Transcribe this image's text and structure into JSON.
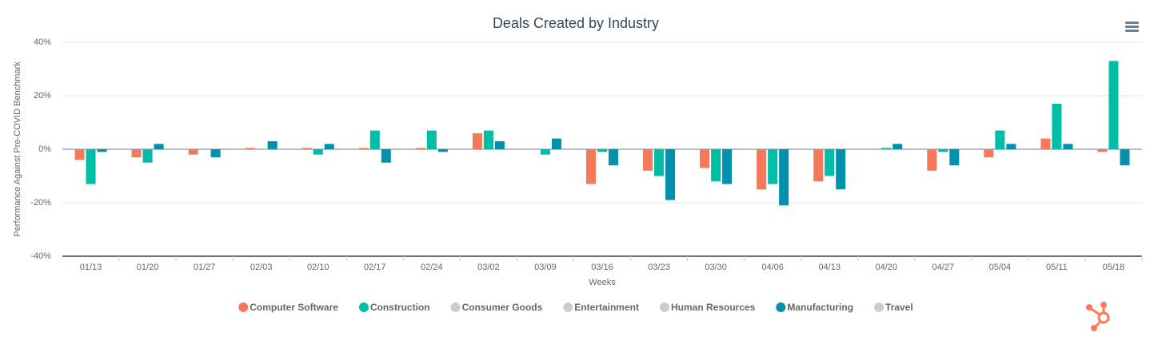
{
  "chart_data": {
    "type": "bar",
    "title": "Deals Created by Industry",
    "x_label": "Weeks",
    "y_label": "Performance Against Pre-COVID Benchmark",
    "categories": [
      "01/13",
      "01/20",
      "01/27",
      "02/03",
      "02/10",
      "02/17",
      "02/24",
      "03/02",
      "03/09",
      "03/16",
      "03/23",
      "03/30",
      "04/06",
      "04/13",
      "04/20",
      "04/27",
      "05/04",
      "05/11",
      "05/18"
    ],
    "series": [
      {
        "name": "Computer Software",
        "color": "#f5785a",
        "values": [
          -4,
          -3,
          -2,
          0.5,
          0.5,
          0.5,
          0.5,
          6,
          0,
          -13,
          -8,
          -7,
          -15,
          -12,
          0,
          -8,
          -3,
          4,
          -1
        ]
      },
      {
        "name": "Construction",
        "color": "#00bda5",
        "values": [
          -13,
          -5,
          0,
          0,
          -2,
          7,
          7,
          7,
          -2,
          -1,
          -10,
          -12,
          -13,
          -10,
          0.5,
          -1,
          7,
          17,
          33
        ]
      },
      {
        "name": "Consumer Goods",
        "color": "#cccccc",
        "visible": false
      },
      {
        "name": "Entertainment",
        "color": "#cccccc",
        "visible": false
      },
      {
        "name": "Human Resources",
        "color": "#cccccc",
        "visible": false
      },
      {
        "name": "Manufacturing",
        "color": "#0091ae",
        "values": [
          -1,
          2,
          -3,
          3,
          2,
          -5,
          -1,
          3,
          4,
          -6,
          -19,
          -13,
          -21,
          -15,
          2,
          -6,
          2,
          2,
          -6
        ]
      },
      {
        "name": "Travel",
        "color": "#cccccc",
        "visible": false
      }
    ],
    "ylim": [
      -40,
      40
    ],
    "yticks": [
      {
        "value": -40,
        "label": "-40%"
      },
      {
        "value": -20,
        "label": "-20%"
      },
      {
        "value": 0,
        "label": "0%"
      },
      {
        "value": 20,
        "label": "20%"
      },
      {
        "value": 40,
        "label": "40%"
      }
    ],
    "grid": true,
    "legend": "bottom"
  }
}
